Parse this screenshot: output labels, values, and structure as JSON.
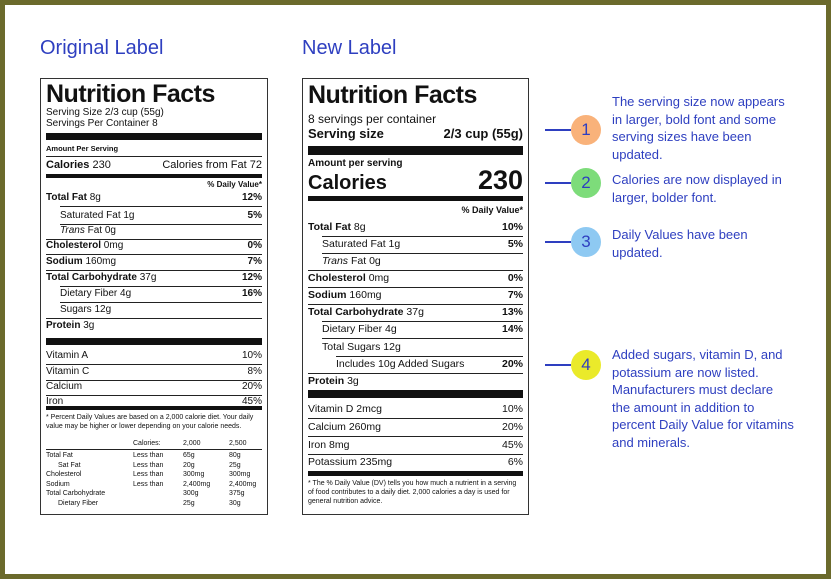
{
  "headings": {
    "original": "Original Label",
    "new": "New Label"
  },
  "original": {
    "title": "Nutrition Facts",
    "serving_size": "Serving Size 2/3 cup (55g)",
    "servings_per_container": "Servings Per Container 8",
    "amount_per_serving": "Amount Per Serving",
    "calories_label": "Calories",
    "calories_value": "230",
    "calories_from_fat": "Calories from Fat 72",
    "dv_header": "% Daily Value*",
    "nutrients": [
      {
        "name": "Total Fat",
        "amount": "8g",
        "dv": "12%"
      },
      {
        "name": "Saturated Fat",
        "amount": "1g",
        "dv": "5%"
      },
      {
        "name": "Trans",
        "suffix": "Fat 0g",
        "dv": ""
      },
      {
        "name": "Cholesterol",
        "amount": "0mg",
        "dv": "0%"
      },
      {
        "name": "Sodium",
        "amount": "160mg",
        "dv": "7%"
      },
      {
        "name": "Total Carbohydrate",
        "amount": "37g",
        "dv": "12%"
      },
      {
        "name": "Dietary Fiber",
        "amount": "4g",
        "dv": "16%"
      },
      {
        "name": "Sugars",
        "amount": "12g",
        "dv": ""
      },
      {
        "name": "Protein",
        "amount": "3g",
        "dv": ""
      }
    ],
    "vitamins": [
      {
        "name": "Vitamin A",
        "dv": "10%"
      },
      {
        "name": "Vitamin C",
        "dv": "8%"
      },
      {
        "name": "Calcium",
        "dv": "20%"
      },
      {
        "name": "Iron",
        "dv": "45%"
      }
    ],
    "footnote": "* Percent Daily Values are based on a 2,000 calorie diet. Your daily value may be higher or lower depending on your calorie needs.",
    "table": {
      "calories_label": "Calories:",
      "col1": "2,000",
      "col2": "2,500",
      "rows": [
        {
          "name": "Total Fat",
          "cond": "Less than",
          "v1": "65g",
          "v2": "80g"
        },
        {
          "name": "Sat Fat",
          "cond": "Less than",
          "v1": "20g",
          "v2": "25g"
        },
        {
          "name": "Cholesterol",
          "cond": "Less than",
          "v1": "300mg",
          "v2": "300mg"
        },
        {
          "name": "Sodium",
          "cond": "Less than",
          "v1": "2,400mg",
          "v2": "2,400mg"
        },
        {
          "name": "Total Carbohydrate",
          "cond": "",
          "v1": "300g",
          "v2": "375g"
        },
        {
          "name": "Dietary Fiber",
          "cond": "",
          "v1": "25g",
          "v2": "30g"
        }
      ]
    }
  },
  "new": {
    "title": "Nutrition Facts",
    "servings": "8 servings per container",
    "serving_size_label": "Serving size",
    "serving_size_value": "2/3 cup (55g)",
    "amount_per_serving": "Amount per serving",
    "calories_label": "Calories",
    "calories_value": "230",
    "dv_header": "% Daily Value*",
    "nutrients": [
      {
        "name": "Total Fat",
        "amount": "8g",
        "dv": "10%"
      },
      {
        "name": "Saturated Fat",
        "amount": "1g",
        "dv": "5%"
      },
      {
        "name": "Trans",
        "suffix": "Fat 0g",
        "dv": ""
      },
      {
        "name": "Cholesterol",
        "amount": "0mg",
        "dv": "0%"
      },
      {
        "name": "Sodium",
        "amount": "160mg",
        "dv": "7%"
      },
      {
        "name": "Total Carbohydrate",
        "amount": "37g",
        "dv": "13%"
      },
      {
        "name": "Dietary Fiber",
        "amount": "4g",
        "dv": "14%"
      },
      {
        "name": "Total Sugars",
        "amount": "12g",
        "dv": ""
      },
      {
        "name": "Includes 10g Added Sugars",
        "amount": "",
        "dv": "20%"
      },
      {
        "name": "Protein",
        "amount": "3g",
        "dv": ""
      }
    ],
    "vitamins": [
      {
        "name": "Vitamin D 2mcg",
        "dv": "10%"
      },
      {
        "name": "Calcium 260mg",
        "dv": "20%"
      },
      {
        "name": "Iron 8mg",
        "dv": "45%"
      },
      {
        "name": "Potassium 235mg",
        "dv": "6%"
      }
    ],
    "footnote": "* The % Daily Value (DV) tells you how much a nutrient in a serving of food contributes to a daily diet. 2,000 calories a day is used for general nutrition advice."
  },
  "annotations": [
    {
      "number": "1",
      "color": "#f9b27a",
      "text": "The serving size now appears in larger, bold font and some serving sizes have been updated."
    },
    {
      "number": "2",
      "color": "#7ddc7a",
      "text": "Calories are now displayed in larger, bolder font."
    },
    {
      "number": "3",
      "color": "#8ec9f2",
      "text": "Daily Values have been updated."
    },
    {
      "number": "4",
      "color": "#eaea2a",
      "text": "Added sugars, vitamin D, and potassium are now listed. Manufacturers must declare the amount in addition to percent Daily Value for vitamins and minerals."
    }
  ],
  "colors": {
    "frame": "#6b6a2c",
    "text_blue": "#2e3fc0"
  }
}
